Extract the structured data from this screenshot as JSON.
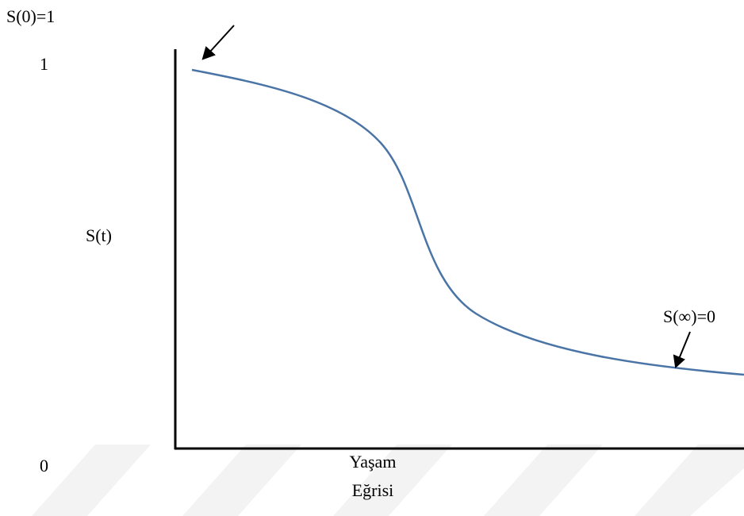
{
  "labels": {
    "start": "S(0)=1",
    "y_top": "1",
    "y_axis": "S(t)",
    "y_bottom": "0",
    "x_axis": [
      "Yaşam",
      "Eğrisi"
    ],
    "end": "S(∞)=0"
  }
}
